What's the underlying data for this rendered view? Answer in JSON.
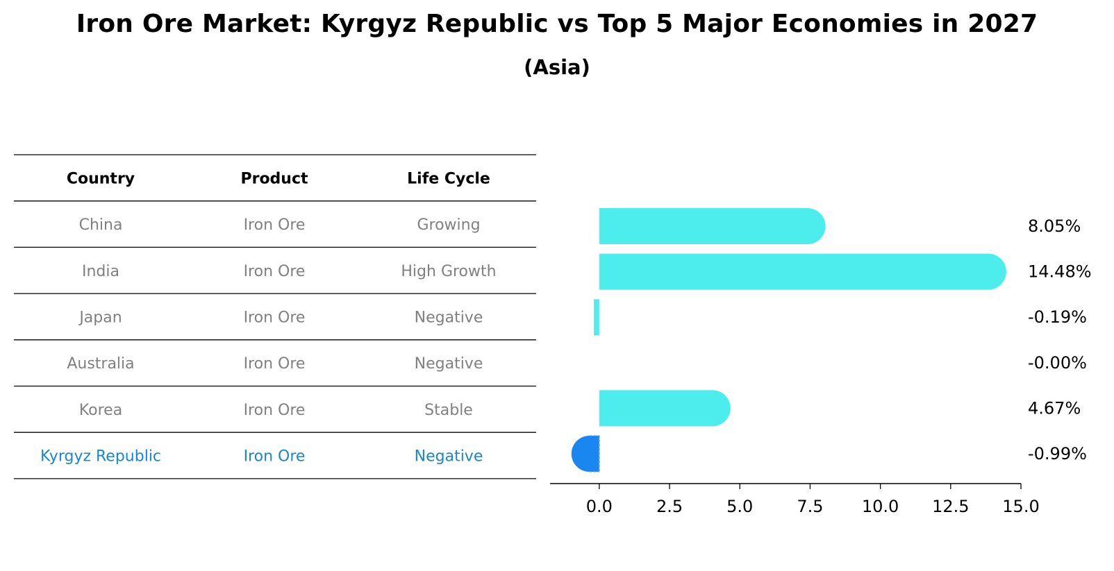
{
  "chart_data": {
    "type": "bar",
    "title": "Iron Ore Market: Kyrgyz Republic vs Top 5 Major Economies in 2027",
    "subtitle": "(Asia)",
    "table": {
      "headers": [
        "Country",
        "Product",
        "Life Cycle"
      ],
      "rows": [
        {
          "country": "China",
          "product": "Iron Ore",
          "life_cycle": "Growing"
        },
        {
          "country": "India",
          "product": "Iron Ore",
          "life_cycle": "High Growth"
        },
        {
          "country": "Japan",
          "product": "Iron Ore",
          "life_cycle": "Negative"
        },
        {
          "country": "Australia",
          "product": "Iron Ore",
          "life_cycle": "Negative"
        },
        {
          "country": "Korea",
          "product": "Iron Ore",
          "life_cycle": "Stable"
        },
        {
          "country": "Kyrgyz Republic",
          "product": "Iron Ore",
          "life_cycle": "Negative"
        }
      ]
    },
    "categories": [
      "China",
      "India",
      "Japan",
      "Australia",
      "Korea",
      "Kyrgyz Republic"
    ],
    "values": [
      8.05,
      14.48,
      -0.19,
      -0.0,
      4.67,
      -0.99
    ],
    "value_labels": [
      "8.05%",
      "14.48%",
      "-0.19%",
      "-0.00%",
      "4.67%",
      "-0.99%"
    ],
    "highlight": "Kyrgyz Republic",
    "xlim": [
      -1.75,
      15.0
    ],
    "xticks": [
      0.0,
      2.5,
      5.0,
      7.5,
      10.0,
      12.5,
      15.0
    ],
    "xtick_labels": [
      "0.0",
      "2.5",
      "5.0",
      "7.5",
      "10.0",
      "12.5",
      "15.0"
    ],
    "xlabel": "",
    "ylabel": "",
    "grid": false,
    "colors": {
      "bar": "#4deded",
      "highlight_bar": "#1a86f0",
      "table_text": "#808080",
      "highlight_text": "#1a86d0",
      "rule": "#000000"
    }
  }
}
